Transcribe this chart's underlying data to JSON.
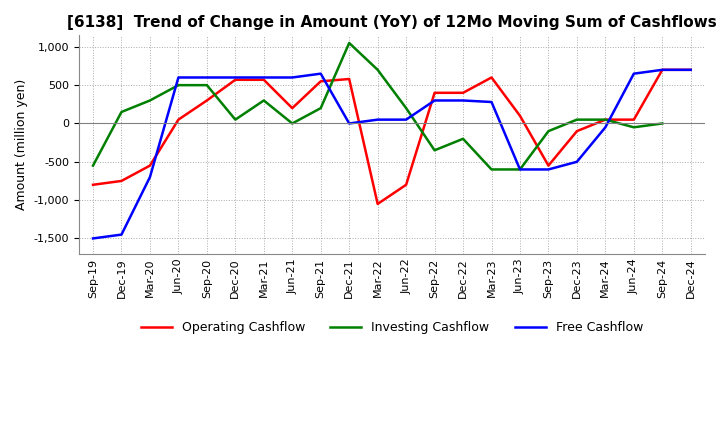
{
  "title": "[6138]  Trend of Change in Amount (YoY) of 12Mo Moving Sum of Cashflows",
  "ylabel": "Amount (million yen)",
  "ylim": [
    -1700,
    1150
  ],
  "yticks": [
    -1500,
    -1000,
    -500,
    0,
    500,
    1000
  ],
  "x_labels": [
    "Sep-19",
    "Dec-19",
    "Mar-20",
    "Jun-20",
    "Sep-20",
    "Dec-20",
    "Mar-21",
    "Jun-21",
    "Sep-21",
    "Dec-21",
    "Mar-22",
    "Jun-22",
    "Sep-22",
    "Dec-22",
    "Mar-23",
    "Jun-23",
    "Sep-23",
    "Dec-23",
    "Mar-24",
    "Jun-24",
    "Sep-24",
    "Dec-24"
  ],
  "operating": [
    -800,
    -750,
    -550,
    50,
    300,
    570,
    570,
    200,
    550,
    580,
    -1050,
    -800,
    400,
    400,
    600,
    100,
    -550,
    -100,
    50,
    50,
    700,
    700
  ],
  "investing": [
    -550,
    150,
    300,
    500,
    500,
    50,
    300,
    0,
    200,
    1050,
    700,
    200,
    -350,
    -200,
    -600,
    -600,
    -100,
    50,
    50,
    -50,
    0,
    null
  ],
  "free": [
    -1500,
    -1450,
    -700,
    600,
    600,
    600,
    600,
    600,
    650,
    0,
    50,
    50,
    300,
    300,
    280,
    -600,
    -600,
    -500,
    -50,
    650,
    700,
    700
  ],
  "line_colors": {
    "operating": "#ff0000",
    "investing": "#008000",
    "free": "#0000ff"
  },
  "legend_labels": [
    "Operating Cashflow",
    "Investing Cashflow",
    "Free Cashflow"
  ],
  "grid_color": "#aaaaaa",
  "background_color": "#ffffff",
  "title_fontsize": 11,
  "label_fontsize": 9,
  "tick_fontsize": 8
}
